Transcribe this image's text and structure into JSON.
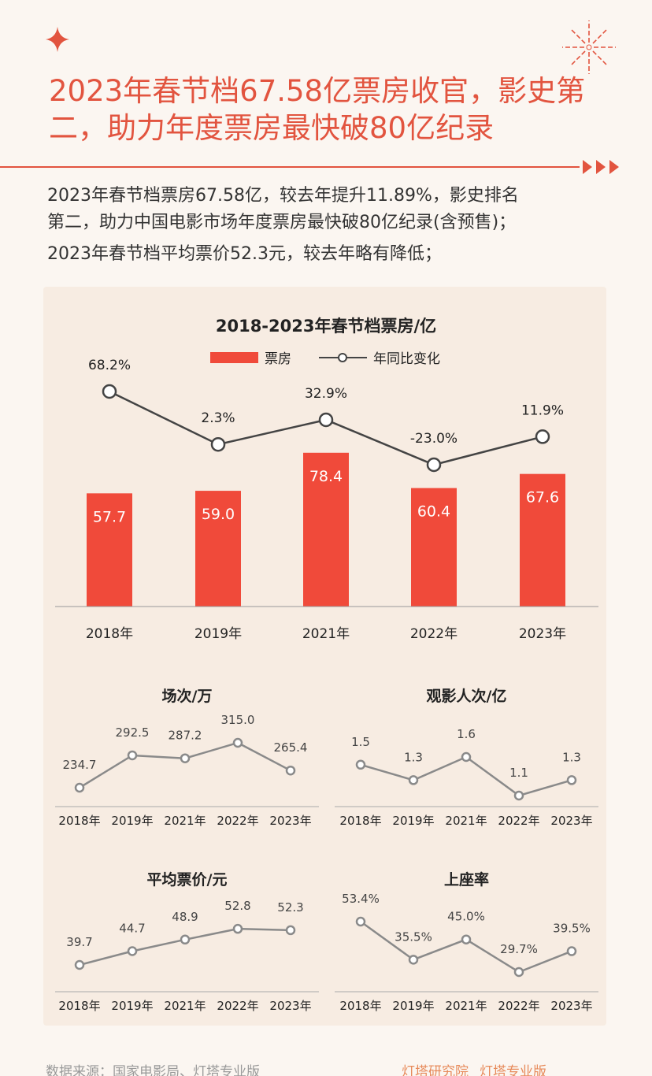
{
  "header": {
    "title_lines": [
      "2023年春节档67.58亿票房收官，影史第",
      "二，助力年度票房最快破80亿纪录"
    ]
  },
  "intro": [
    "2023年春节档票房67.58亿，较去年提升11.89%，影史排名",
    "第二，助力中国电影市场年度票房最快破80亿纪录(含预售)；",
    "2023年春节档平均票价52.3元，较去年略有降低；"
  ],
  "colors": {
    "accent": "#e2543f",
    "bar": "#f04a3a",
    "line": "#444444",
    "small_line": "#8a8a8a"
  },
  "chart_data": [
    {
      "type": "bar+line",
      "title": "2018-2023年春节档票房/亿",
      "categories": [
        "2018年",
        "2019年",
        "2021年",
        "2022年",
        "2023年"
      ],
      "legend": [
        "票房",
        "年同比变化"
      ],
      "legend_position": "top-center",
      "series": [
        {
          "name": "票房",
          "type": "bar",
          "values": [
            57.7,
            59.0,
            78.4,
            60.4,
            67.6
          ],
          "labels": [
            "57.7",
            "59.0",
            "78.4",
            "60.4",
            "67.6"
          ]
        },
        {
          "name": "年同比变化",
          "type": "line",
          "values": [
            68.2,
            2.3,
            32.9,
            -23.0,
            11.9
          ],
          "labels": [
            "68.2%",
            "2.3%",
            "32.9%",
            "-23.0%",
            "11.9%"
          ]
        }
      ]
    },
    {
      "type": "line",
      "title": "场次/万",
      "categories": [
        "2018年",
        "2019年",
        "2021年",
        "2022年",
        "2023年"
      ],
      "values": [
        234.7,
        292.5,
        287.2,
        315.0,
        265.4
      ],
      "labels": [
        "234.7",
        "292.5",
        "287.2",
        "315.0",
        "265.4"
      ]
    },
    {
      "type": "line",
      "title": "观影人次/亿",
      "categories": [
        "2018年",
        "2019年",
        "2021年",
        "2022年",
        "2023年"
      ],
      "values": [
        1.5,
        1.3,
        1.6,
        1.1,
        1.3
      ],
      "labels": [
        "1.5",
        "1.3",
        "1.6",
        "1.1",
        "1.3"
      ]
    },
    {
      "type": "line",
      "title": "平均票价/元",
      "categories": [
        "2018年",
        "2019年",
        "2021年",
        "2022年",
        "2023年"
      ],
      "values": [
        39.7,
        44.7,
        48.9,
        52.8,
        52.3
      ],
      "labels": [
        "39.7",
        "44.7",
        "48.9",
        "52.8",
        "52.3"
      ]
    },
    {
      "type": "line",
      "title": "上座率",
      "categories": [
        "2018年",
        "2019年",
        "2021年",
        "2022年",
        "2023年"
      ],
      "values": [
        53.4,
        35.5,
        45.0,
        29.7,
        39.5
      ],
      "labels": [
        "53.4%",
        "35.5%",
        "45.0%",
        "29.7%",
        "39.5%"
      ]
    }
  ],
  "footer": {
    "source": "数据来源：国家电影局、灯塔专业版",
    "logo1": "灯塔研究院",
    "logo2": "灯塔专业版"
  }
}
